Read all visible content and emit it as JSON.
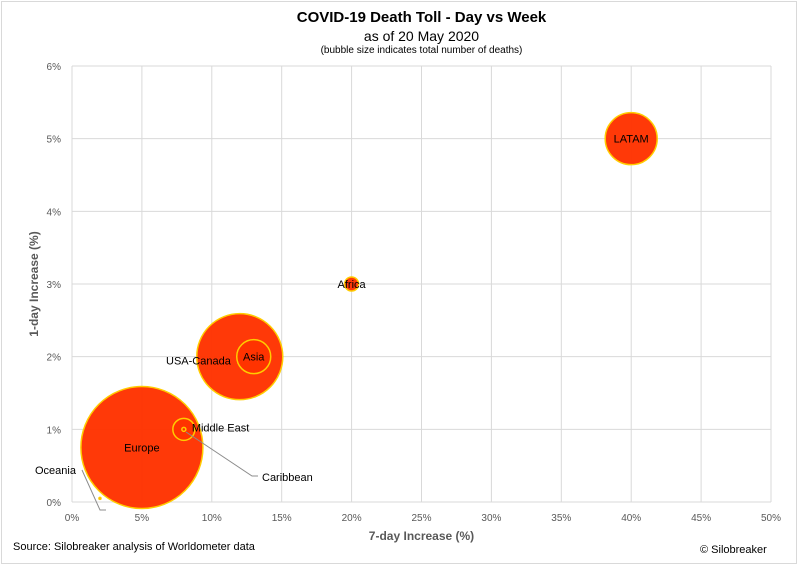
{
  "chart_data": {
    "type": "scatter",
    "title": "COVID-19 Death Toll - Day vs Week",
    "subtitle": "as of 20 May 2020",
    "note": "(bubble size indicates total number of deaths)",
    "xlabel": "7-day Increase (%)",
    "ylabel": "1-day Increase (%)",
    "xlim": [
      0,
      50
    ],
    "ylim": [
      0,
      6
    ],
    "x_ticks": [
      "0%",
      "5%",
      "10%",
      "15%",
      "20%",
      "25%",
      "30%",
      "35%",
      "40%",
      "45%",
      "50%"
    ],
    "y_ticks": [
      "0%",
      "1%",
      "2%",
      "3%",
      "4%",
      "5%",
      "6%"
    ],
    "grid": true,
    "bubble_fill": "#ff3300",
    "bubble_stroke": "#ffcc00",
    "points": [
      {
        "label": "Europe",
        "x": 5,
        "y": 0.75,
        "r": 61
      },
      {
        "label": "USA-Canada",
        "x": 12,
        "y": 2.0,
        "r": 43
      },
      {
        "label": "LATAM",
        "x": 40,
        "y": 5.0,
        "r": 26
      },
      {
        "label": "Asia",
        "x": 13,
        "y": 2.0,
        "r": 17
      },
      {
        "label": "Middle East",
        "x": 8,
        "y": 1.0,
        "r": 11
      },
      {
        "label": "Africa",
        "x": 20,
        "y": 3.0,
        "r": 7
      },
      {
        "label": "Caribbean",
        "x": 8,
        "y": 1.0,
        "r": 2
      },
      {
        "label": "Oceania",
        "x": 2,
        "y": 0.05,
        "r": 1
      }
    ]
  },
  "footer": {
    "source": "Source: Silobreaker analysis of Worldometer data",
    "credit": "© Silobreaker"
  }
}
